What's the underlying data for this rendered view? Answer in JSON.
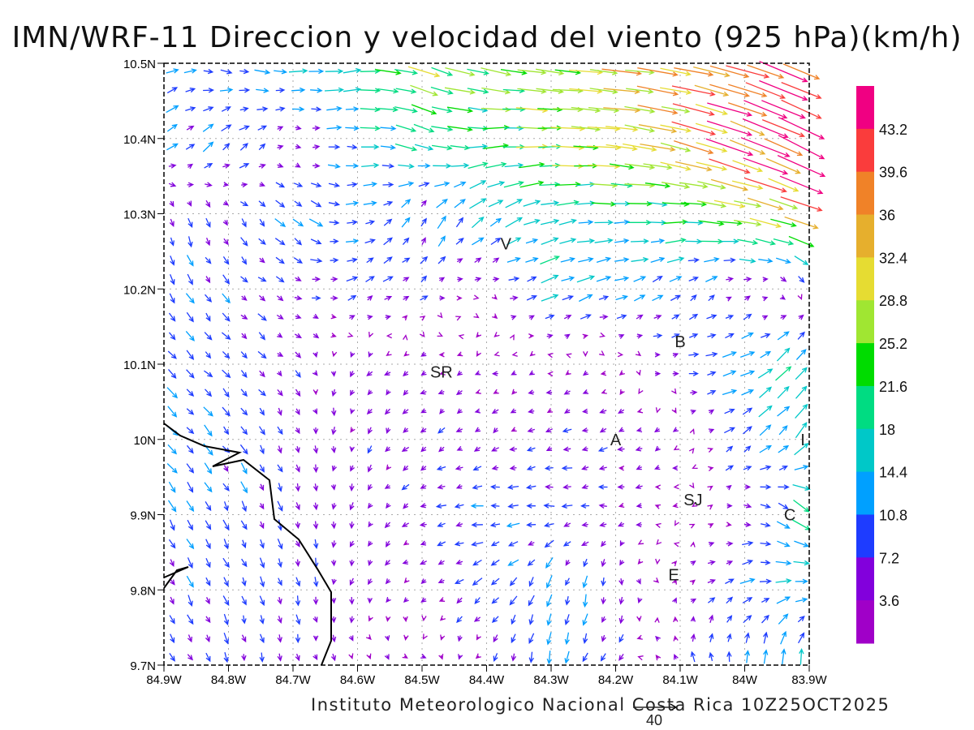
{
  "title": "IMN/WRF-11 Direccion y velocidad del viento (925 hPa)(km/h)",
  "credit": "Instituto Meteorologico Nacional Costa Rica  10Z25OCT2025",
  "reference_vector": {
    "label": "40",
    "value": 40
  },
  "chart_data": {
    "type": "vector-field",
    "title": "IMN/WRF-11 Direccion y velocidad del viento (925 hPa)(km/h)",
    "units": "km/h",
    "level": "925 hPa",
    "valid_time": "10Z25OCT2025",
    "xlim": [
      -84.9,
      -83.9
    ],
    "ylim": [
      9.7,
      10.5
    ],
    "x_ticks": [
      "84.9W",
      "84.8W",
      "84.7W",
      "84.6W",
      "84.5W",
      "84.4W",
      "84.3W",
      "84.2W",
      "84.1W",
      "84W",
      "83.9W"
    ],
    "y_ticks": [
      "10.5N",
      "10.4N",
      "10.3N",
      "10.2N",
      "10.1N",
      "10N",
      "9.9N",
      "9.8N",
      "9.7N"
    ],
    "grid": true,
    "colorbar": {
      "labels": [
        "43.2",
        "39.6",
        "36",
        "32.4",
        "28.8",
        "25.2",
        "21.6",
        "18",
        "14.4",
        "10.8",
        "7.2",
        "3.6"
      ],
      "colors": [
        "#f00082",
        "#fa3c3c",
        "#f08228",
        "#e6af2d",
        "#e6dc32",
        "#a0e632",
        "#00dc00",
        "#00dc82",
        "#00c8c8",
        "#00a0ff",
        "#1e3cff",
        "#8200dc",
        "#a000c8"
      ],
      "thresholds": [
        3.6,
        7.2,
        10.8,
        14.4,
        18,
        21.6,
        25.2,
        28.8,
        32.4,
        36,
        39.6,
        43.2
      ]
    },
    "stations": [
      {
        "label": "V",
        "lon": -84.37,
        "lat": 10.26
      },
      {
        "label": "B",
        "lon": -84.1,
        "lat": 10.13
      },
      {
        "label": "SR",
        "lon": -84.47,
        "lat": 10.09
      },
      {
        "label": "A",
        "lon": -84.2,
        "lat": 10.0
      },
      {
        "label": "I",
        "lon": -83.91,
        "lat": 10.0
      },
      {
        "label": "SJ",
        "lon": -84.08,
        "lat": 9.92
      },
      {
        "label": "C",
        "lon": -83.93,
        "lat": 9.9
      },
      {
        "label": "E",
        "lon": -84.11,
        "lat": 9.82
      }
    ],
    "wind_u": [
      [
        10,
        10,
        14,
        18,
        25,
        24,
        26,
        30,
        34,
        36,
        42
      ],
      [
        8,
        8,
        3,
        14,
        18,
        20,
        26,
        30,
        32,
        38,
        42
      ],
      [
        2,
        3,
        10,
        10,
        4,
        12,
        16,
        16,
        20,
        26,
        30
      ],
      [
        5,
        6,
        6,
        8,
        6,
        2,
        14,
        12,
        8,
        3,
        0
      ],
      [
        7,
        6,
        4,
        -4,
        -4,
        -3,
        -3,
        -2,
        6,
        14,
        12
      ],
      [
        8,
        6,
        2,
        -2,
        -5,
        -4,
        -6,
        -6,
        -3,
        8,
        10
      ],
      [
        6,
        4,
        2,
        -2,
        -6,
        -10,
        -9,
        -6,
        -2,
        4,
        14
      ],
      [
        4,
        4,
        2,
        -2,
        -4,
        -8,
        -4,
        0,
        2,
        10,
        14
      ],
      [
        4,
        2,
        1,
        2,
        2,
        -2,
        -2,
        -4,
        -2,
        0,
        2
      ]
    ],
    "wind_v": [
      [
        3,
        -3,
        0,
        2,
        -8,
        -5,
        -3,
        -3,
        -6,
        -10,
        -18
      ],
      [
        6,
        8,
        0,
        0,
        -6,
        2,
        0,
        -3,
        -8,
        -14,
        -20
      ],
      [
        -8,
        -6,
        -8,
        2,
        10,
        10,
        4,
        0,
        0,
        -4,
        -10
      ],
      [
        -10,
        -6,
        -2,
        5,
        3,
        -2,
        6,
        4,
        6,
        3,
        -4
      ],
      [
        -7,
        -6,
        -4,
        -4,
        -2,
        -1,
        -1,
        -2,
        0,
        4,
        14
      ],
      [
        -8,
        -8,
        -6,
        -5,
        -4,
        -3,
        -2,
        -2,
        -2,
        6,
        12
      ],
      [
        -10,
        -8,
        -7,
        -5,
        -2,
        0,
        0,
        0,
        0,
        0,
        -10
      ],
      [
        -8,
        -8,
        -8,
        -5,
        -2,
        -6,
        -10,
        -8,
        2,
        4,
        0
      ],
      [
        -6,
        -8,
        -6,
        -3,
        -2,
        -4,
        -12,
        -6,
        6,
        10,
        16
      ]
    ]
  }
}
